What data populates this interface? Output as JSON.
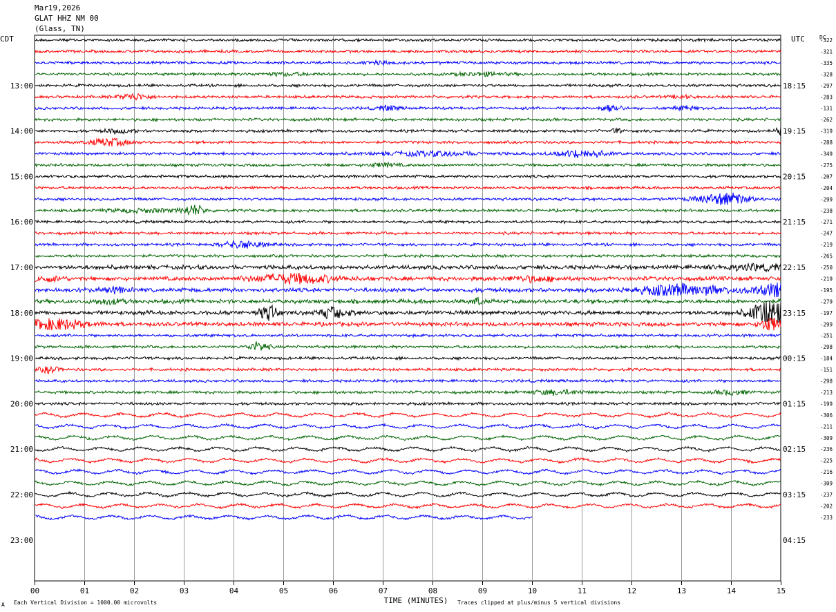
{
  "header": {
    "date": "Mar19,2026",
    "station": "GLAT HHZ NM 00",
    "location": "(Glass, TN)"
  },
  "left_tz": "CDT",
  "right_tz": "UTC",
  "dc_label": "DC",
  "footer": {
    "scale_note": "Each Vertical Division = 1000.00 microvolts",
    "clip_note": "Traces clipped at plus/minus 5 vertical divisions",
    "corner_mark": "A"
  },
  "chart_data": {
    "type": "line",
    "title": "",
    "xlabel": "TIME (MINUTES)",
    "x_ticks": [
      "00",
      "01",
      "02",
      "03",
      "04",
      "05",
      "06",
      "07",
      "08",
      "09",
      "10",
      "11",
      "12",
      "13",
      "14",
      "15"
    ],
    "xlim": [
      0,
      15
    ],
    "grid": true,
    "left_hour_labels": [
      "13:00",
      "14:00",
      "15:00",
      "16:00",
      "17:00",
      "18:00",
      "19:00",
      "20:00",
      "21:00",
      "22:00",
      "23:00"
    ],
    "right_hour_labels": [
      "18:15",
      "19:15",
      "20:15",
      "21:15",
      "22:15",
      "23:15",
      "00:15",
      "01:15",
      "02:15",
      "03:15",
      "04:15"
    ],
    "trace_colors": [
      "#000000",
      "#ff0000",
      "#0000ff",
      "#006400"
    ],
    "dc_offsets": [
      "-322",
      "-321",
      "-335",
      "-328",
      "-297",
      "-283",
      "-131",
      "-262",
      "-319",
      "-288",
      "-349",
      "-275",
      "-207",
      "-204",
      "-299",
      "-238",
      "-271",
      "-247",
      "-219",
      "-265",
      "-250",
      "-219",
      "-195",
      "-279",
      "-197",
      "-299",
      "-251",
      "-298",
      "-184",
      "-151",
      "-298",
      "-213",
      "-199",
      "-306",
      "-211",
      "-309",
      "-236",
      "-225",
      "-216",
      "-309",
      "-237",
      "-202",
      "-233"
    ],
    "last_trace_end_minute": 10
  }
}
